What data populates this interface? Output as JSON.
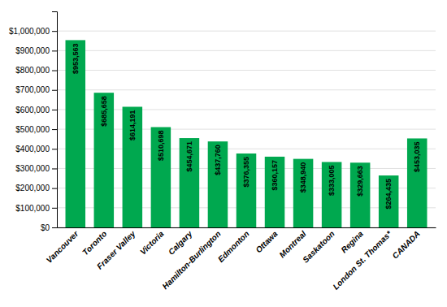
{
  "chart_data": {
    "type": "bar",
    "categories": [
      "Vancouver",
      "Toronto",
      "Fraser Valley",
      "Victoria",
      "Calgary",
      "Hamilton-Burlington",
      "Edmonton",
      "Ottawa",
      "Montreal",
      "Saskatoon",
      "Regina",
      "London St. Thomas*",
      "CANADA"
    ],
    "values": [
      953563,
      685658,
      614191,
      510698,
      454671,
      437760,
      376355,
      360157,
      348940,
      333005,
      329663,
      264435,
      453035
    ],
    "value_labels": [
      "$953,563",
      "$685,658",
      "$614,191",
      "$510,698",
      "$454,671",
      "$437,760",
      "$376,355",
      "$360,157",
      "$348,940",
      "$333,005",
      "$329,663",
      "$264,435",
      "$453,035"
    ],
    "data_labels": true,
    "color": "#00A84F",
    "ylim": [
      0,
      1100000
    ],
    "yticks": [
      {
        "value": 0,
        "label": "$0"
      },
      {
        "value": 100000,
        "label": "$100,000"
      },
      {
        "value": 200000,
        "label": "$200,000"
      },
      {
        "value": 300000,
        "label": "$300,000"
      },
      {
        "value": 400000,
        "label": "$400,000"
      },
      {
        "value": 500000,
        "label": "$500,000"
      },
      {
        "value": 600000,
        "label": "$600,000"
      },
      {
        "value": 700000,
        "label": "$700,000"
      },
      {
        "value": 800000,
        "label": "$800,000"
      },
      {
        "value": 900000,
        "label": "$900,000"
      },
      {
        "value": 1000000,
        "label": "$1,000,000"
      }
    ],
    "grid": true
  }
}
